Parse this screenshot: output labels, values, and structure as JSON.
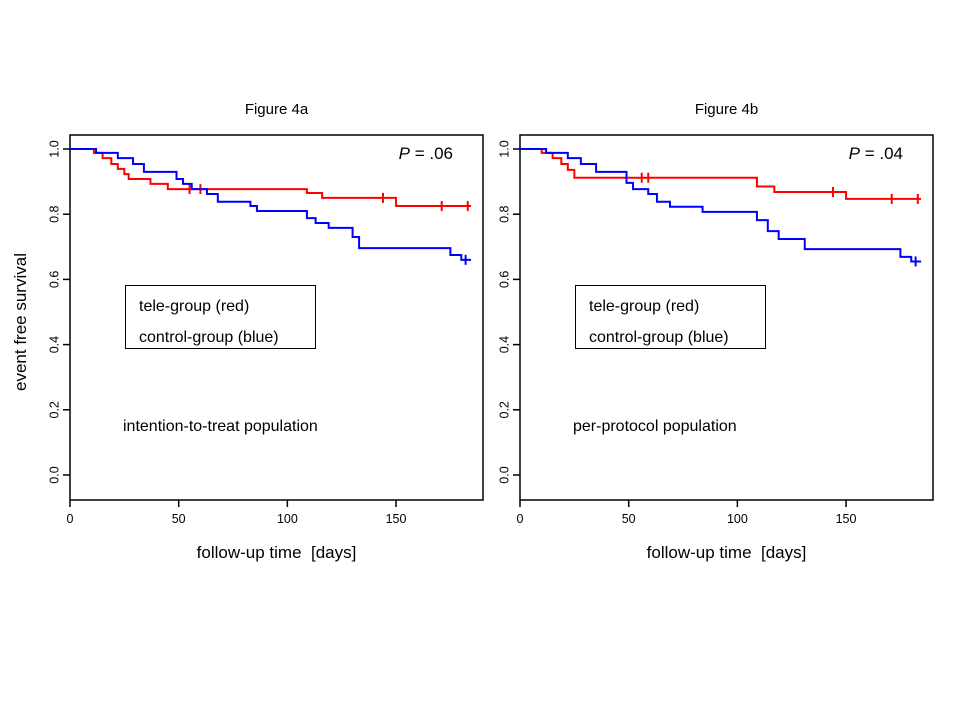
{
  "page": {
    "background": "#ffffff"
  },
  "shared": {
    "y_axis_label": "event free survival",
    "x_axis_label": "follow-up time  [days]"
  },
  "colors": {
    "tele_group": "#ff0000",
    "control_group": "#0000ff",
    "axis": "#000000"
  },
  "chart_data": [
    {
      "type": "line",
      "subtype": "kaplan-meier-step",
      "title": "Figure 4a",
      "p_value": {
        "text": "P = .06",
        "symbol": "P",
        "rest": " = .06",
        "value": 0.06
      },
      "population_label": "intention-to-treat population",
      "xlabel": "follow-up time  [days]",
      "ylabel": "event free survival",
      "xlim": [
        0,
        190
      ],
      "ylim": [
        0.0,
        1.0
      ],
      "x_ticks": [
        0,
        50,
        100,
        150
      ],
      "y_ticks": [
        "0.0",
        "0.2",
        "0.4",
        "0.6",
        "0.8",
        "1.0"
      ],
      "grid": "off",
      "legend_position": "inside-middle-left",
      "legend": [
        "tele-group (red)",
        "control-group (blue)"
      ],
      "series": [
        {
          "name": "tele-group",
          "color": "#ff0000",
          "steps": [
            [
              0,
              1.0
            ],
            [
              11,
              0.988
            ],
            [
              15,
              0.972
            ],
            [
              19,
              0.954
            ],
            [
              22,
              0.939
            ],
            [
              25,
              0.923
            ],
            [
              27,
              0.908
            ],
            [
              37,
              0.893
            ],
            [
              45,
              0.877
            ],
            [
              109,
              0.865
            ],
            [
              116,
              0.85
            ],
            [
              150,
              0.825
            ]
          ],
          "end": 184.5,
          "censors": [
            [
              55,
              0.877
            ],
            [
              60,
              0.877
            ],
            [
              144,
              0.85
            ],
            [
              171,
              0.825
            ],
            [
              183,
              0.825
            ]
          ]
        },
        {
          "name": "control-group",
          "color": "#0000ff",
          "steps": [
            [
              0,
              1.0
            ],
            [
              12,
              0.988
            ],
            [
              22,
              0.972
            ],
            [
              29,
              0.954
            ],
            [
              34,
              0.93
            ],
            [
              49,
              0.908
            ],
            [
              52,
              0.893
            ],
            [
              56,
              0.877
            ],
            [
              63,
              0.862
            ],
            [
              68,
              0.838
            ],
            [
              83,
              0.825
            ],
            [
              86,
              0.81
            ],
            [
              109,
              0.788
            ],
            [
              113,
              0.773
            ],
            [
              119,
              0.758
            ],
            [
              130,
              0.73
            ],
            [
              133,
              0.696
            ],
            [
              175,
              0.675
            ],
            [
              180,
              0.66
            ]
          ],
          "end": 184.5,
          "censors": [
            [
              182,
              0.66
            ]
          ]
        }
      ]
    },
    {
      "type": "line",
      "subtype": "kaplan-meier-step",
      "title": "Figure 4b",
      "p_value": {
        "text": "P = .04",
        "symbol": "P",
        "rest": " = .04",
        "value": 0.04
      },
      "population_label": "per-protocol population",
      "xlabel": "follow-up time  [days]",
      "ylabel": "event free survival",
      "xlim": [
        0,
        190
      ],
      "ylim": [
        0.0,
        1.0
      ],
      "x_ticks": [
        0,
        50,
        100,
        150
      ],
      "y_ticks": [
        "0.0",
        "0.2",
        "0.4",
        "0.6",
        "0.8",
        "1.0"
      ],
      "grid": "off",
      "legend_position": "inside-middle-left",
      "legend": [
        "tele-group (red)",
        "control-group (blue)"
      ],
      "series": [
        {
          "name": "tele-group",
          "color": "#ff0000",
          "steps": [
            [
              0,
              1.0
            ],
            [
              10,
              0.988
            ],
            [
              15,
              0.972
            ],
            [
              19,
              0.954
            ],
            [
              22,
              0.936
            ],
            [
              25,
              0.912
            ],
            [
              109,
              0.885
            ],
            [
              117,
              0.868
            ],
            [
              150,
              0.847
            ]
          ],
          "end": 184.5,
          "censors": [
            [
              56,
              0.912
            ],
            [
              59,
              0.912
            ],
            [
              144,
              0.868
            ],
            [
              171,
              0.847
            ],
            [
              183,
              0.847
            ]
          ]
        },
        {
          "name": "control-group",
          "color": "#0000ff",
          "steps": [
            [
              0,
              1.0
            ],
            [
              12,
              0.988
            ],
            [
              22,
              0.972
            ],
            [
              28,
              0.954
            ],
            [
              35,
              0.93
            ],
            [
              49,
              0.896
            ],
            [
              52,
              0.877
            ],
            [
              59,
              0.862
            ],
            [
              63,
              0.838
            ],
            [
              69,
              0.823
            ],
            [
              84,
              0.807
            ],
            [
              109,
              0.782
            ],
            [
              114,
              0.748
            ],
            [
              119,
              0.724
            ],
            [
              131,
              0.693
            ],
            [
              175,
              0.669
            ],
            [
              180,
              0.655
            ]
          ],
          "end": 184.5,
          "censors": [
            [
              182,
              0.655
            ]
          ]
        }
      ]
    }
  ]
}
